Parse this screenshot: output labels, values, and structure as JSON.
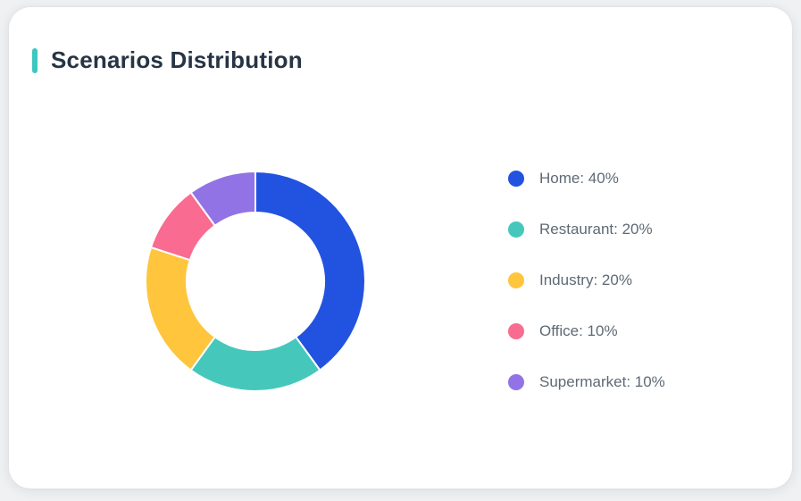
{
  "card": {
    "title": "Scenarios Distribution",
    "accent_color": "#3ec6c2",
    "background": "#ffffff",
    "page_background": "#eff1f2"
  },
  "chart_data": {
    "type": "pie",
    "title": "Scenarios Distribution",
    "donut": true,
    "inner_radius_ratio": 0.63,
    "start_angle_deg": 0,
    "direction": "clockwise",
    "legend_position": "right",
    "total": 100,
    "categories": [
      "Home",
      "Restaurant",
      "Industry",
      "Office",
      "Supermarket"
    ],
    "values": [
      40,
      20,
      20,
      10,
      10
    ],
    "segments": [
      {
        "label": "Home",
        "value": 40,
        "color": "#2252e0",
        "legend": "Home: 40%"
      },
      {
        "label": "Restaurant",
        "value": 20,
        "color": "#45c8bb",
        "legend": "Restaurant: 20%"
      },
      {
        "label": "Industry",
        "value": 20,
        "color": "#fec53d",
        "legend": "Industry: 20%"
      },
      {
        "label": "Office",
        "value": 10,
        "color": "#f96b90",
        "legend": "Office: 10%"
      },
      {
        "label": "Supermarket",
        "value": 10,
        "color": "#9173e6",
        "legend": "Supermarket: 10%"
      }
    ]
  }
}
